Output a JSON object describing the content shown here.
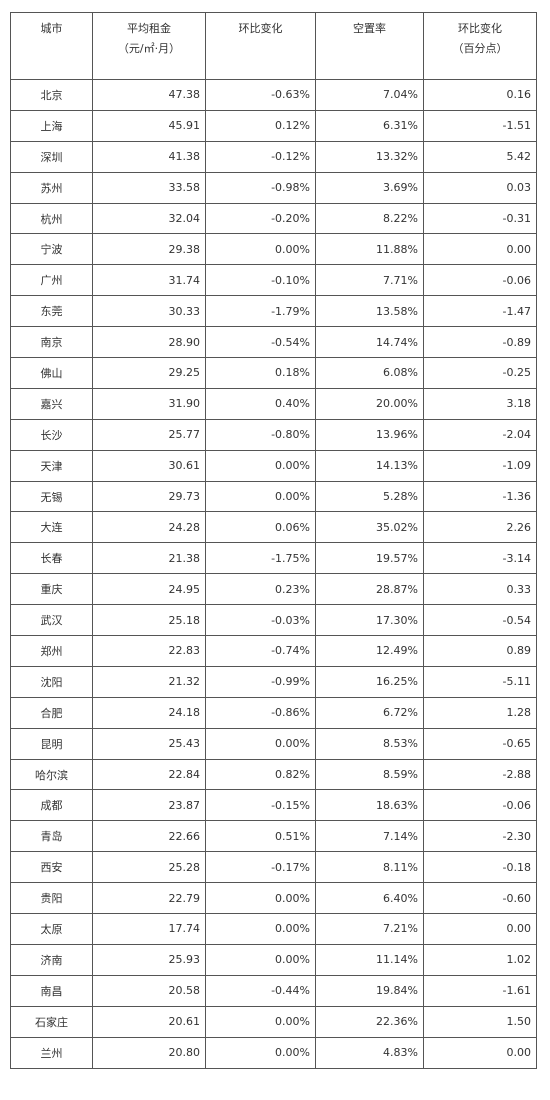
{
  "table": {
    "headers": [
      {
        "line1": "城市",
        "line2": ""
      },
      {
        "line1": "平均租金",
        "line2": "（元/㎡·月）"
      },
      {
        "line1": "环比变化",
        "line2": ""
      },
      {
        "line1": "空置率",
        "line2": ""
      },
      {
        "line1": "环比变化",
        "line2": "（百分点）"
      }
    ],
    "rows": [
      [
        "北京",
        "47.38",
        "-0.63%",
        "7.04%",
        "0.16"
      ],
      [
        "上海",
        "45.91",
        "0.12%",
        "6.31%",
        "-1.51"
      ],
      [
        "深圳",
        "41.38",
        "-0.12%",
        "13.32%",
        "5.42"
      ],
      [
        "苏州",
        "33.58",
        "-0.98%",
        "3.69%",
        "0.03"
      ],
      [
        "杭州",
        "32.04",
        "-0.20%",
        "8.22%",
        "-0.31"
      ],
      [
        "宁波",
        "29.38",
        "0.00%",
        "11.88%",
        "0.00"
      ],
      [
        "广州",
        "31.74",
        "-0.10%",
        "7.71%",
        "-0.06"
      ],
      [
        "东莞",
        "30.33",
        "-1.79%",
        "13.58%",
        "-1.47"
      ],
      [
        "南京",
        "28.90",
        "-0.54%",
        "14.74%",
        "-0.89"
      ],
      [
        "佛山",
        "29.25",
        "0.18%",
        "6.08%",
        "-0.25"
      ],
      [
        "嘉兴",
        "31.90",
        "0.40%",
        "20.00%",
        "3.18"
      ],
      [
        "长沙",
        "25.77",
        "-0.80%",
        "13.96%",
        "-2.04"
      ],
      [
        "天津",
        "30.61",
        "0.00%",
        "14.13%",
        "-1.09"
      ],
      [
        "无锡",
        "29.73",
        "0.00%",
        "5.28%",
        "-1.36"
      ],
      [
        "大连",
        "24.28",
        "0.06%",
        "35.02%",
        "2.26"
      ],
      [
        "长春",
        "21.38",
        "-1.75%",
        "19.57%",
        "-3.14"
      ],
      [
        "重庆",
        "24.95",
        "0.23%",
        "28.87%",
        "0.33"
      ],
      [
        "武汉",
        "25.18",
        "-0.03%",
        "17.30%",
        "-0.54"
      ],
      [
        "郑州",
        "22.83",
        "-0.74%",
        "12.49%",
        "0.89"
      ],
      [
        "沈阳",
        "21.32",
        "-0.99%",
        "16.25%",
        "-5.11"
      ],
      [
        "合肥",
        "24.18",
        "-0.86%",
        "6.72%",
        "1.28"
      ],
      [
        "昆明",
        "25.43",
        "0.00%",
        "8.53%",
        "-0.65"
      ],
      [
        "哈尔滨",
        "22.84",
        "0.82%",
        "8.59%",
        "-2.88"
      ],
      [
        "成都",
        "23.87",
        "-0.15%",
        "18.63%",
        "-0.06"
      ],
      [
        "青岛",
        "22.66",
        "0.51%",
        "7.14%",
        "-2.30"
      ],
      [
        "西安",
        "25.28",
        "-0.17%",
        "8.11%",
        "-0.18"
      ],
      [
        "贵阳",
        "22.79",
        "0.00%",
        "6.40%",
        "-0.60"
      ],
      [
        "太原",
        "17.74",
        "0.00%",
        "7.21%",
        "0.00"
      ],
      [
        "济南",
        "25.93",
        "0.00%",
        "11.14%",
        "1.02"
      ],
      [
        "南昌",
        "20.58",
        "-0.44%",
        "19.84%",
        "-1.61"
      ],
      [
        "石家庄",
        "20.61",
        "0.00%",
        "22.36%",
        "1.50"
      ],
      [
        "兰州",
        "20.80",
        "0.00%",
        "4.83%",
        "0.00"
      ]
    ]
  }
}
